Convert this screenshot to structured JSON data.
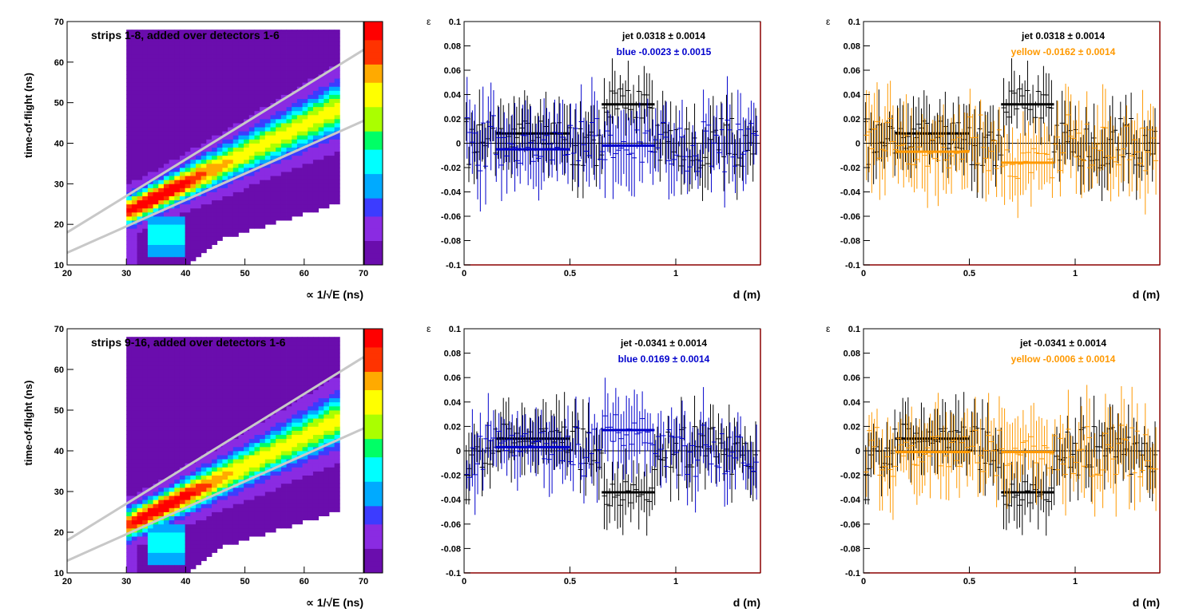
{
  "chart_data": [
    {
      "id": "heat-top",
      "type": "heatmap",
      "title": "strips 1-8, added over detectors 1-6",
      "ylabel": "time-of-flight (ns)",
      "xlabel": "∝ 1/√E (ns)",
      "xlim": [
        20,
        70
      ],
      "ylim": [
        10,
        70
      ],
      "xticks": [
        "20",
        "30",
        "40",
        "50",
        "60",
        "70"
      ],
      "yticks": [
        "10",
        "20",
        "30",
        "40",
        "50",
        "60",
        "70"
      ],
      "colorscale": [
        "#6a0dad",
        "#8a2be2",
        "#3c3cff",
        "#00aaff",
        "#00ffff",
        "#00ff66",
        "#aaff00",
        "#ffff00",
        "#ffaa00",
        "#ff3300",
        "#ff0000"
      ],
      "band": {
        "peak_x": 35,
        "peak_y": 26.5,
        "end_x": 65,
        "end_y": 48
      },
      "cut_lines": [
        {
          "x1": 20,
          "y1": 18,
          "x2": 70,
          "y2": 63
        },
        {
          "x1": 20,
          "y1": 13,
          "x2": 70,
          "y2": 45.5
        }
      ]
    },
    {
      "id": "blue-top",
      "type": "scatter",
      "ylabel": "ε",
      "xlabel": "d (m)",
      "xlim": [
        0,
        1.4
      ],
      "ylim": [
        -0.1,
        0.1
      ],
      "xticks": [
        "0",
        "0.5",
        "1"
      ],
      "yticks": [
        "-0.1",
        "-0.08",
        "-0.06",
        "-0.04",
        "-0.02",
        "0",
        "0.02",
        "0.04",
        "0.06",
        "0.08",
        "0.1"
      ],
      "legend": [
        {
          "text": "jet  0.0318 ± 0.0014",
          "color": "#000000"
        },
        {
          "text": "blue -0.0023 ± 0.0015",
          "color": "#0000cc"
        }
      ],
      "series": [
        {
          "name": "jet",
          "color": "#000000",
          "seed": 11,
          "noise": 0.022,
          "err": 0.02,
          "segments": [
            [
              0.15,
              0.5,
              0.008
            ],
            [
              0.65,
              0.9,
              0.032
            ]
          ]
        },
        {
          "name": "blue",
          "color": "#0000cc",
          "seed": 23,
          "noise": 0.024,
          "err": 0.025,
          "segments": [
            [
              0.15,
              0.5,
              -0.005
            ],
            [
              0.65,
              0.9,
              -0.002
            ]
          ]
        }
      ]
    },
    {
      "id": "yellow-top",
      "type": "scatter",
      "ylabel": "ε",
      "xlabel": "d (m)",
      "xlim": [
        0,
        1.4
      ],
      "ylim": [
        -0.1,
        0.1
      ],
      "xticks": [
        "0",
        "0.5",
        "1"
      ],
      "yticks": [
        "-0.1",
        "-0.08",
        "-0.06",
        "-0.04",
        "-0.02",
        "0",
        "0.02",
        "0.04",
        "0.06",
        "0.08",
        "0.1"
      ],
      "legend": [
        {
          "text": "jet  0.0318 ± 0.0014",
          "color": "#000000"
        },
        {
          "text": "yellow -0.0162 ± 0.0014",
          "color": "#ff9900"
        }
      ],
      "series": [
        {
          "name": "jet",
          "color": "#000000",
          "seed": 11,
          "noise": 0.022,
          "err": 0.02,
          "segments": [
            [
              0.15,
              0.5,
              0.008
            ],
            [
              0.65,
              0.9,
              0.032
            ]
          ]
        },
        {
          "name": "yellow",
          "color": "#ff9900",
          "seed": 37,
          "noise": 0.024,
          "err": 0.025,
          "segments": [
            [
              0.15,
              0.5,
              -0.007
            ],
            [
              0.65,
              0.9,
              -0.016
            ]
          ]
        }
      ]
    },
    {
      "id": "heat-bottom",
      "type": "heatmap",
      "title": "strips 9-16, added over detectors 1-6",
      "ylabel": "time-of-flight (ns)",
      "xlabel": "∝ 1/√E (ns)",
      "xlim": [
        20,
        70
      ],
      "ylim": [
        10,
        70
      ],
      "xticks": [
        "20",
        "30",
        "40",
        "50",
        "60",
        "70"
      ],
      "yticks": [
        "10",
        "20",
        "30",
        "40",
        "50",
        "60",
        "70"
      ],
      "colorscale": [
        "#6a0dad",
        "#8a2be2",
        "#3c3cff",
        "#00aaff",
        "#00ffff",
        "#00ff66",
        "#aaff00",
        "#ffff00",
        "#ffaa00",
        "#ff3300",
        "#ff0000"
      ],
      "band": {
        "peak_x": 35.5,
        "peak_y": 25.5,
        "end_x": 65,
        "end_y": 47
      },
      "cut_lines": [
        {
          "x1": 20,
          "y1": 18,
          "x2": 70,
          "y2": 63
        },
        {
          "x1": 20,
          "y1": 13,
          "x2": 70,
          "y2": 45.5
        }
      ]
    },
    {
      "id": "blue-bottom",
      "type": "scatter",
      "ylabel": "ε",
      "xlabel": "d (m)",
      "xlim": [
        0,
        1.4
      ],
      "ylim": [
        -0.1,
        0.1
      ],
      "xticks": [
        "0",
        "0.5",
        "1"
      ],
      "yticks": [
        "-0.1",
        "-0.08",
        "-0.06",
        "-0.04",
        "-0.02",
        "0",
        "0.02",
        "0.04",
        "0.06",
        "0.08",
        "0.1"
      ],
      "legend": [
        {
          "text": "jet -0.0341 ± 0.0014",
          "color": "#000000"
        },
        {
          "text": "blue  0.0169 ± 0.0014",
          "color": "#0000cc"
        }
      ],
      "series": [
        {
          "name": "jet",
          "color": "#000000",
          "seed": 53,
          "noise": 0.02,
          "err": 0.02,
          "segments": [
            [
              0.15,
              0.5,
              0.01
            ],
            [
              0.65,
              0.9,
              -0.034
            ]
          ]
        },
        {
          "name": "blue",
          "color": "#0000cc",
          "seed": 71,
          "noise": 0.022,
          "err": 0.022,
          "segments": [
            [
              0.15,
              0.5,
              0.003
            ],
            [
              0.65,
              0.9,
              0.017
            ]
          ]
        }
      ]
    },
    {
      "id": "yellow-bottom",
      "type": "scatter",
      "ylabel": "ε",
      "xlabel": "d (m)",
      "xlim": [
        0,
        1.4
      ],
      "ylim": [
        -0.1,
        0.1
      ],
      "xticks": [
        "0",
        "0.5",
        "1"
      ],
      "yticks": [
        "-0.1",
        "-0.08",
        "-0.06",
        "-0.04",
        "-0.02",
        "0",
        "0.02",
        "0.04",
        "0.06",
        "0.08",
        "0.1"
      ],
      "legend": [
        {
          "text": "jet -0.0341 ± 0.0014",
          "color": "#000000"
        },
        {
          "text": "yellow -0.0006 ± 0.0014",
          "color": "#ff9900"
        }
      ],
      "series": [
        {
          "name": "jet",
          "color": "#000000",
          "seed": 53,
          "noise": 0.02,
          "err": 0.02,
          "segments": [
            [
              0.15,
              0.5,
              0.01
            ],
            [
              0.65,
              0.9,
              -0.034
            ]
          ]
        },
        {
          "name": "yellow",
          "color": "#ff9900",
          "seed": 89,
          "noise": 0.022,
          "err": 0.024,
          "segments": [
            [
              0.15,
              0.5,
              -0.001
            ],
            [
              0.65,
              0.9,
              -0.001
            ]
          ]
        }
      ]
    }
  ]
}
